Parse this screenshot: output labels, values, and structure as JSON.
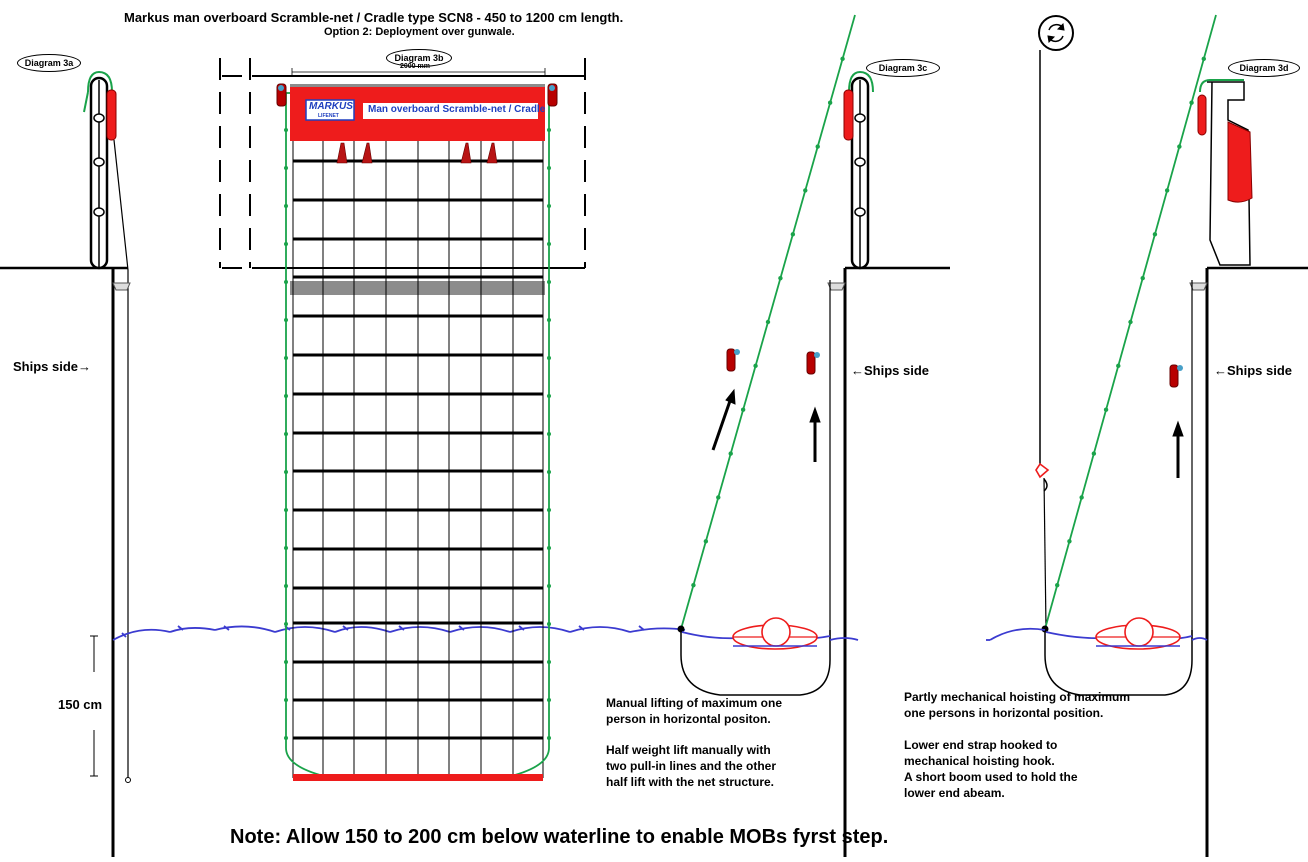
{
  "title": "Markus man overboard Scramble-net / Cradle type SCN8 - 450 to 1200 cm length.",
  "subtitle": "Option 2: Deployment over gunwale.",
  "diagram_labels": {
    "a": "Diagram 3a",
    "b": "Diagram 3b",
    "c": "Diagram 3c",
    "d": "Diagram 3d"
  },
  "dimension": "2000 mm",
  "banner": {
    "logo_top": "MARKUS",
    "logo_sub": "LIFENET",
    "text": "Man overboard Scramble-net / Cradle"
  },
  "ships_side_right_arrow": "Ships side→",
  "ships_side_left_arrow": "←Ships side",
  "depth_label": "150 cm",
  "caption_c": {
    "line1": "Manual lifting of maximum one",
    "line2": "person in horizontal positon.",
    "line3": "Half weight lift manually with",
    "line4": "two pull-in lines and the other",
    "line5": "half lift with the net structure."
  },
  "caption_d": {
    "line1": "Partly mechanical hoisting of maximum",
    "line2": "one persons in horizontal position.",
    "line3": "Lower end strap hooked to",
    "line4": "mechanical hoisting hook.",
    "line5": "A short boom used to hold the",
    "line6": "lower end abeam."
  },
  "note": "Note: Allow 150 to 200 cm below waterline to enable MOBs fyrst step.",
  "colors": {
    "net_green": "#1aa34a",
    "banner_red": "#ee1c1c",
    "water_blue": "#3b3bd0",
    "grey_bar": "#8c8c8c",
    "logo_blue": "#1f3fbf"
  },
  "icons": [
    "rotation-icon",
    "lifting-arrow-icon",
    "hook-icon",
    "buoy-icon"
  ]
}
